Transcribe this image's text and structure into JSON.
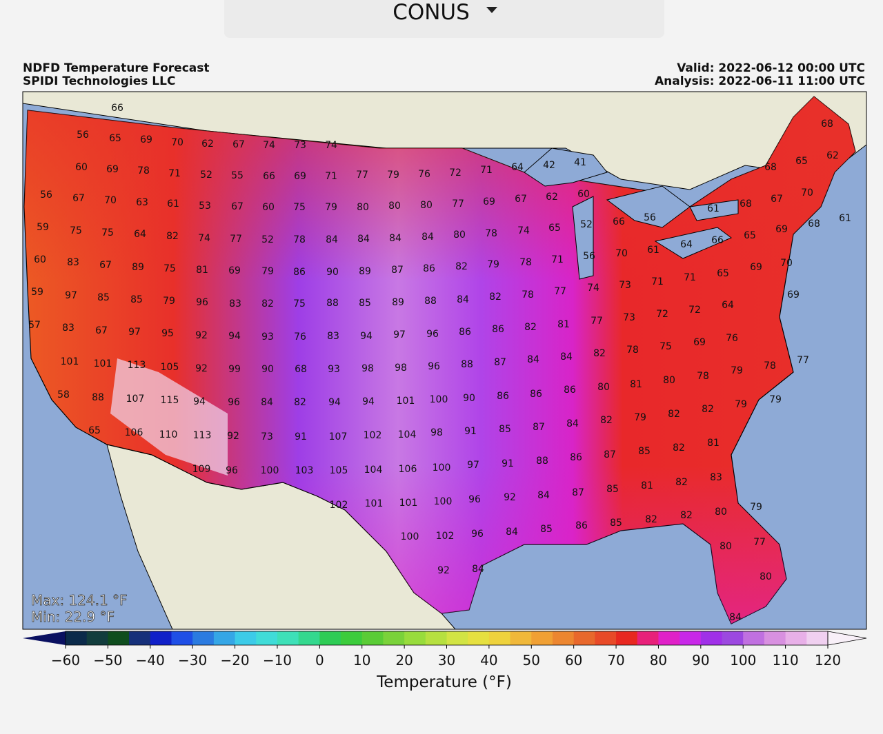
{
  "selector": {
    "label": "CONUS"
  },
  "header": {
    "title": "NDFD Temperature Forecast",
    "source": "SPIDI Technologies LLC",
    "valid": "Valid: 2022-06-12 00:00 UTC",
    "analysis": "Analysis: 2022-06-11 11:00 UTC"
  },
  "map": {
    "labels": [
      66,
      56,
      65,
      69,
      70,
      62,
      67,
      74,
      73,
      74,
      68,
      62,
      60,
      69,
      78,
      71,
      52,
      55,
      66,
      69,
      71,
      77,
      79,
      76,
      72,
      71,
      64,
      42,
      41,
      68,
      65,
      56,
      67,
      70,
      63,
      61,
      53,
      67,
      60,
      75,
      79,
      80,
      80,
      80,
      77,
      69,
      67,
      62,
      60,
      61,
      68,
      67,
      70,
      59,
      75,
      75,
      64,
      82,
      74,
      77,
      52,
      78,
      84,
      84,
      84,
      84,
      80,
      78,
      74,
      65,
      52,
      66,
      56,
      66,
      65,
      69,
      68,
      61,
      60,
      83,
      67,
      89,
      75,
      81,
      69,
      79,
      86,
      90,
      89,
      87,
      86,
      82,
      79,
      78,
      71,
      56,
      70,
      61,
      64,
      70,
      59,
      97,
      85,
      85,
      79,
      96,
      83,
      82,
      75,
      88,
      85,
      89,
      88,
      84,
      82,
      78,
      77,
      74,
      73,
      71,
      71,
      65,
      69,
      69,
      57,
      83,
      67,
      97,
      95,
      92,
      94,
      93,
      76,
      83,
      94,
      97,
      96,
      86,
      86,
      82,
      81,
      77,
      73,
      72,
      72,
      64,
      101,
      101,
      113,
      105,
      92,
      99,
      90,
      68,
      93,
      98,
      98,
      96,
      88,
      87,
      84,
      84,
      82,
      78,
      75,
      69,
      76,
      58,
      88,
      107,
      115,
      94,
      96,
      84,
      82,
      94,
      94,
      101,
      100,
      90,
      86,
      86,
      86,
      80,
      81,
      80,
      78,
      79,
      78,
      77,
      79,
      65,
      106,
      110,
      113,
      92,
      73,
      91,
      107,
      102,
      104,
      98,
      91,
      85,
      87,
      84,
      82,
      79,
      82,
      82,
      79,
      109,
      96,
      100,
      103,
      105,
      104,
      106,
      100,
      97,
      91,
      88,
      86,
      87,
      85,
      82,
      81,
      102,
      101,
      101,
      100,
      96,
      92,
      84,
      87,
      85,
      81,
      82,
      83,
      100,
      102,
      96,
      84,
      85,
      86,
      85,
      82,
      82,
      80,
      79,
      92,
      84,
      80,
      77,
      80,
      84
    ],
    "max": "Max: 124.1 °F",
    "min": "Min: 22.9 °F"
  },
  "colorbar": {
    "label": "Temperature (°F)",
    "ticks": [
      {
        "value": -60,
        "label": "−60"
      },
      {
        "value": -50,
        "label": "−50"
      },
      {
        "value": -40,
        "label": "−40"
      },
      {
        "value": -30,
        "label": "−30"
      },
      {
        "value": -20,
        "label": "−20"
      },
      {
        "value": -10,
        "label": "−10"
      },
      0,
      10,
      20,
      30,
      40,
      50,
      60,
      70,
      80,
      90,
      100,
      110,
      120
    ],
    "colors": [
      "#0b2a4a",
      "#123d3d",
      "#0f4d1e",
      "#16307a",
      "#1020c8",
      "#1f4fe6",
      "#2b7be0",
      "#35a6e6",
      "#3ccbe8",
      "#40dcd8",
      "#3ee0b8",
      "#34d88e",
      "#2ecc55",
      "#3ccc3c",
      "#5acc36",
      "#7ad23a",
      "#98dc3c",
      "#b6e040",
      "#d2e444",
      "#e6e040",
      "#eed23c",
      "#f0b83a",
      "#f0a034",
      "#ec8630",
      "#e8682c",
      "#e84a28",
      "#e82820",
      "#e8207a",
      "#e020c8",
      "#c828e8",
      "#a030e8",
      "#9c48e0",
      "#c070e0",
      "#d890e0",
      "#e8b0e8",
      "#f0d0f0"
    ],
    "under_color": "#0a1060",
    "over_color": "#f8f0f8"
  }
}
